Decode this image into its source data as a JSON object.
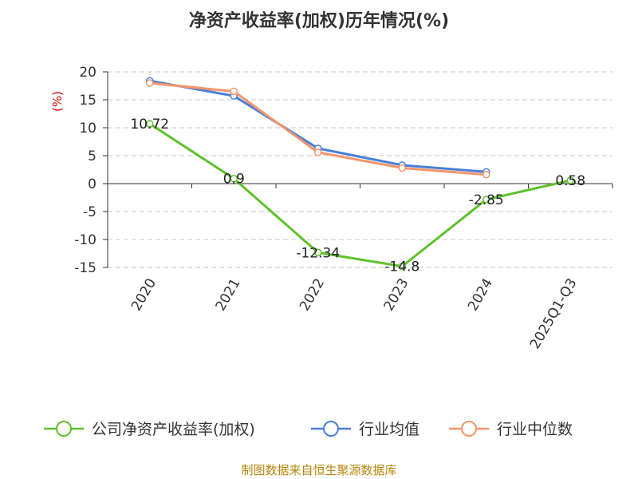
{
  "chart_data": {
    "type": "line",
    "title": "净资产收益率(加权)历年情况(%)",
    "ylabel": "(%)",
    "categories": [
      "2020",
      "2021",
      "2022",
      "2023",
      "2024",
      "2025Q1-Q3"
    ],
    "ylim": [
      -15,
      20
    ],
    "yticks": [
      20,
      15,
      10,
      5,
      0,
      -5,
      -10,
      -15
    ],
    "grid": true,
    "legend_position": "bottom",
    "series": [
      {
        "name": "公司净资产收益率(加权)",
        "color": "#5ec12a",
        "values": [
          10.72,
          0.9,
          -12.34,
          -14.8,
          -2.85,
          0.58
        ],
        "labels": [
          "10.72",
          "0.9",
          "-12.34",
          "-14.8",
          "-2.85",
          "0.58"
        ]
      },
      {
        "name": "行业均值",
        "color": "#4a7fd8",
        "values": [
          18.4,
          15.7,
          6.3,
          3.3,
          2.1,
          null
        ]
      },
      {
        "name": "行业中位数",
        "color": "#f4956a",
        "values": [
          18.0,
          16.5,
          5.6,
          2.8,
          1.6,
          null
        ]
      }
    ]
  },
  "source": "制图数据来自恒生聚源数据库"
}
